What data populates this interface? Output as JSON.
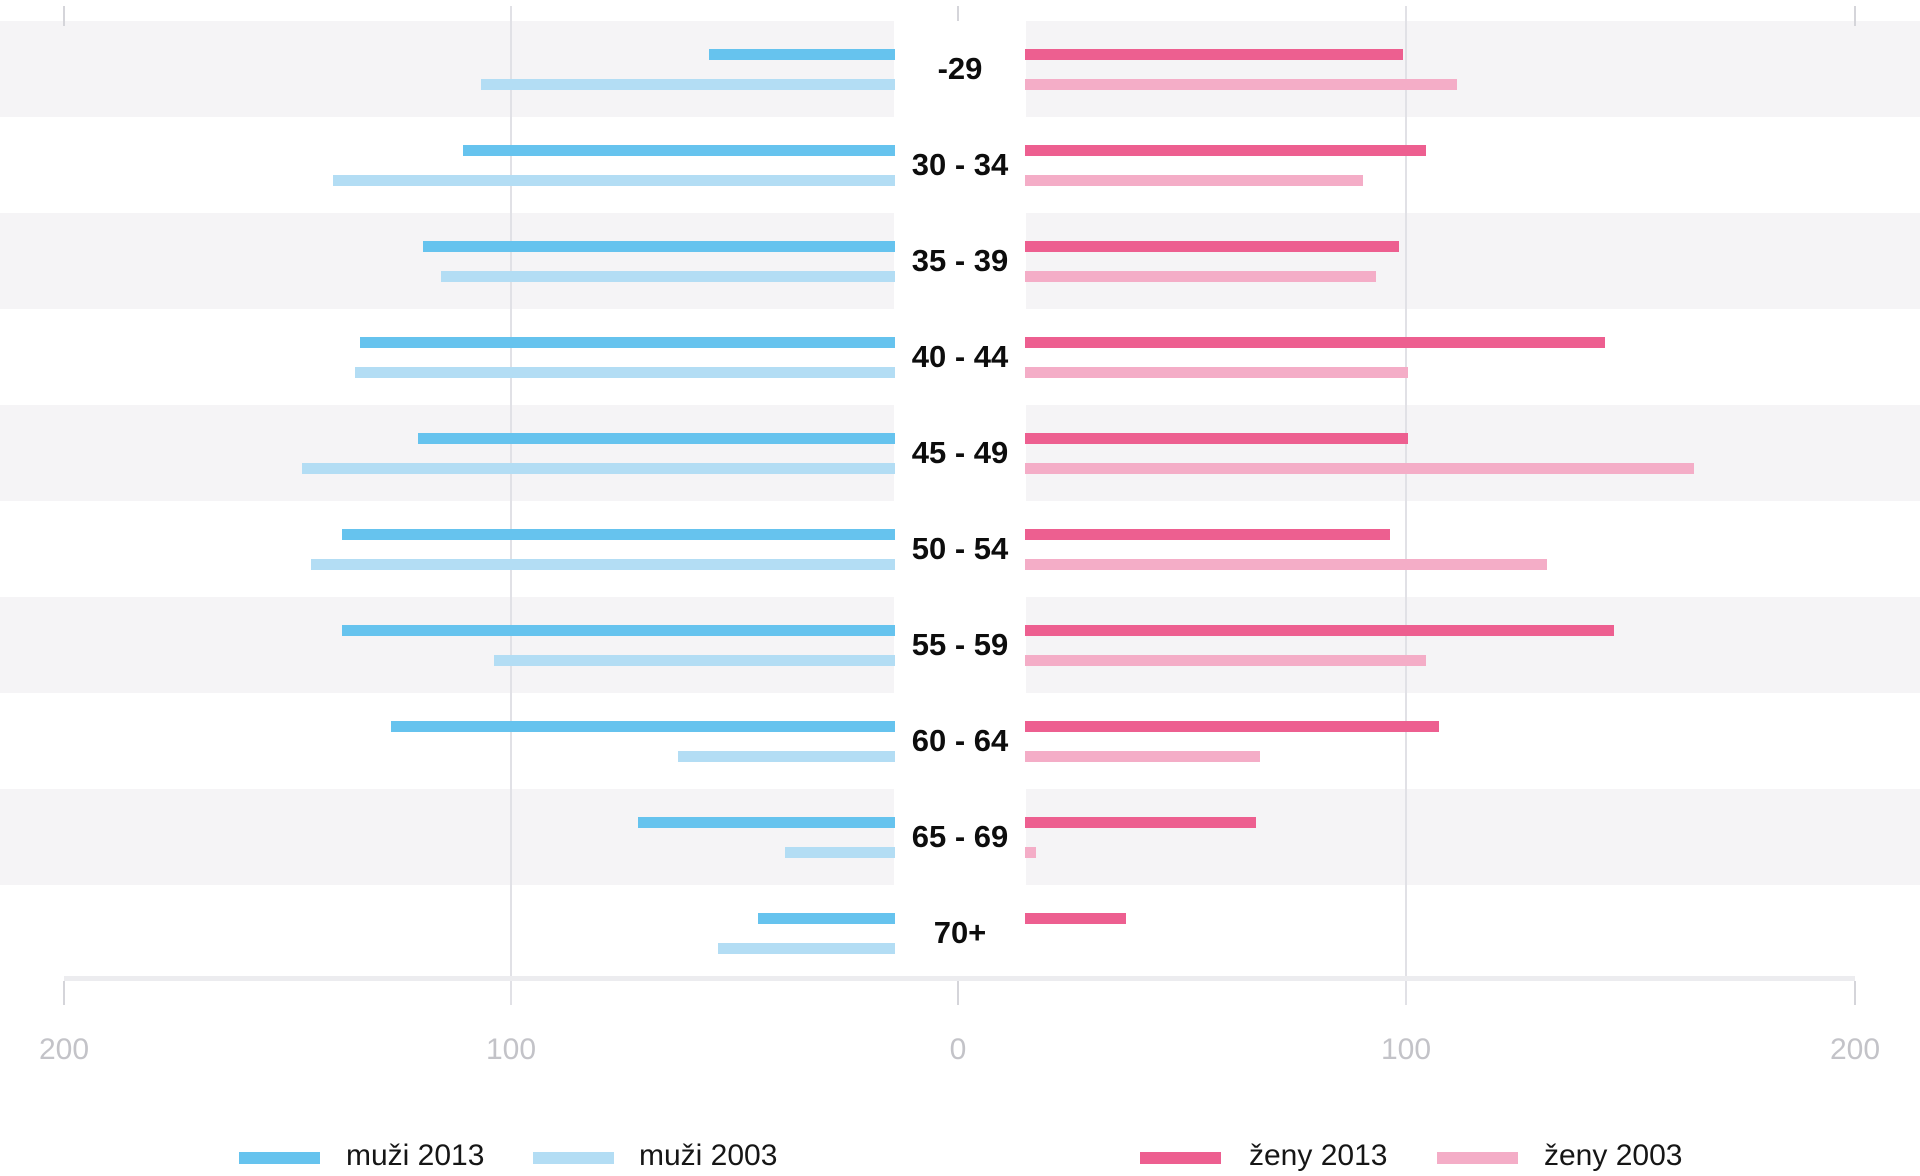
{
  "chart_data": {
    "type": "bar",
    "subtype": "population-pyramid",
    "title": "",
    "categories": [
      "-29",
      "30 - 34",
      "35 - 39",
      "40 - 44",
      "45 - 49",
      "50 - 54",
      "55 - 59",
      "60 - 64",
      "65 - 69",
      "70+"
    ],
    "series": [
      {
        "name": "muži 2013",
        "side": "left",
        "color": "#66c3ee",
        "values": [
          56,
          111,
          120,
          134,
          121,
          138,
          138,
          127,
          72,
          45
        ]
      },
      {
        "name": "muži 2003",
        "side": "left",
        "color": "#b3ddf4",
        "values": [
          107,
          140,
          116,
          135,
          147,
          145,
          104,
          63,
          39,
          54
        ]
      },
      {
        "name": "ženy 2013",
        "side": "right",
        "color": "#ed5f90",
        "values": [
          99,
          104,
          98,
          144,
          100,
          96,
          146,
          107,
          66,
          37
        ]
      },
      {
        "name": "ženy 2003",
        "side": "right",
        "color": "#f4adc7",
        "values": [
          111,
          90,
          93,
          100,
          164,
          131,
          104,
          67,
          17,
          0
        ]
      }
    ],
    "x_axis": {
      "tick_labels": [
        "200",
        "100",
        "0",
        "100",
        "200"
      ],
      "tick_values": [
        -200,
        -100,
        0,
        100,
        200
      ],
      "max_abs": 200,
      "gridlines_at": [
        -100,
        100
      ],
      "grid": "on"
    },
    "legend_position": "bottom",
    "colors": {
      "band_stripe": "#f5f4f6",
      "gridline": "#e1e1e6",
      "axis_line": "#ececef",
      "axis_text": "#c3c3c8",
      "label_text": "#0d0d0d"
    }
  },
  "legend": {
    "items": [
      {
        "label": "muži 2013",
        "color": "#66c3ee"
      },
      {
        "label": "muži 2003",
        "color": "#b3ddf4"
      },
      {
        "label": "ženy 2013",
        "color": "#ed5f90"
      },
      {
        "label": "ženy 2003",
        "color": "#f4adc7"
      }
    ]
  }
}
